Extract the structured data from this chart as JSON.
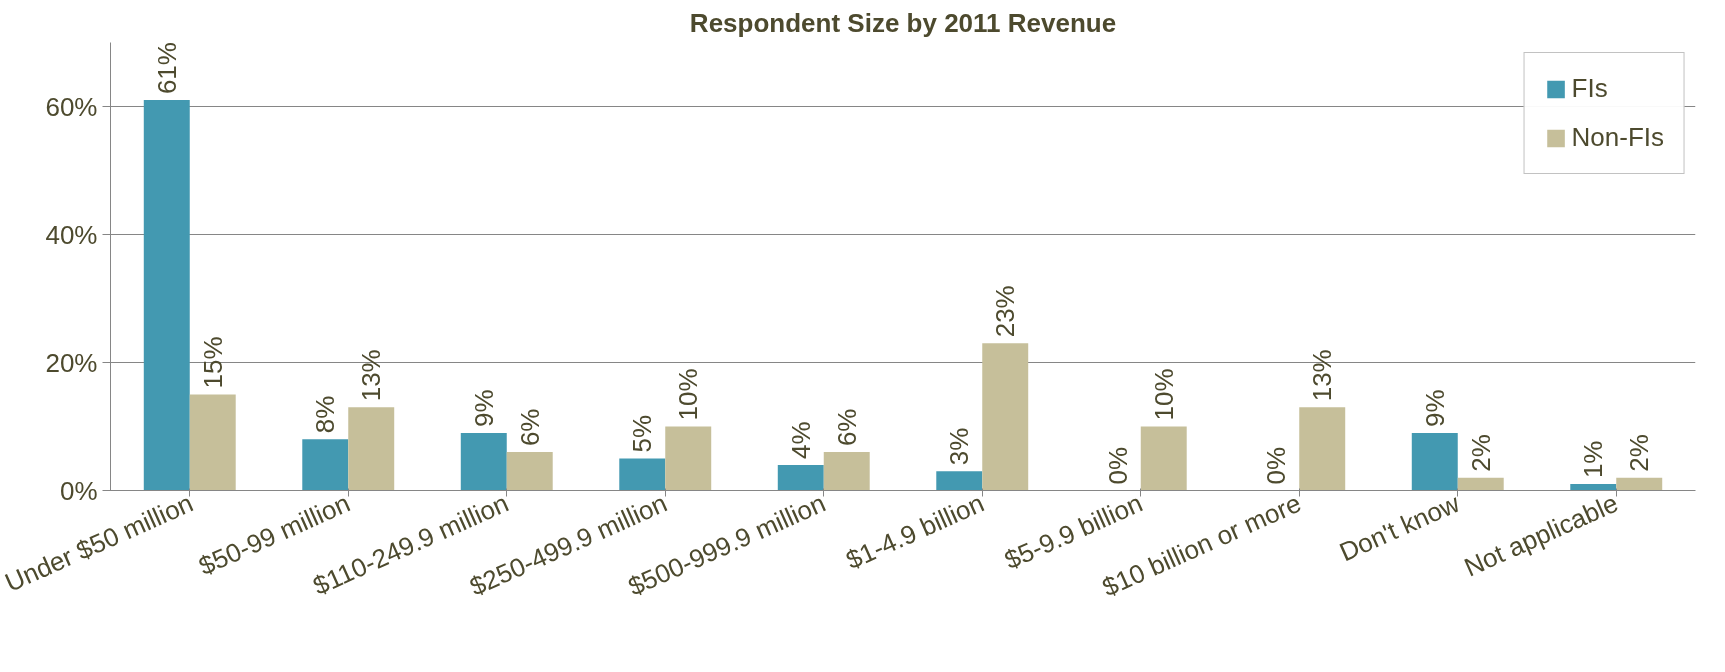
{
  "chart_data": {
    "type": "bar",
    "title": "Respondent Size by 2011 Revenue",
    "categories": [
      "Under $50 million",
      "$50-99 million",
      "$110-249.9 million",
      "$250-499.9 million",
      "$500-999.9 million",
      "$1-4.9 billion",
      "$5-9.9 billion",
      "$10 billion or more",
      "Don't know",
      "Not applicable"
    ],
    "series": [
      {
        "name": "FIs",
        "color": "#4399b1",
        "values": [
          61,
          8,
          9,
          5,
          4,
          3,
          0,
          0,
          9,
          1
        ],
        "value_labels": [
          "61%",
          "8%",
          "9%",
          "5%",
          "4%",
          "3%",
          "0%",
          "0%",
          "9%",
          "1%"
        ]
      },
      {
        "name": "Non-FIs",
        "color": "#c6bf9a",
        "values": [
          15,
          13,
          6,
          10,
          6,
          23,
          10,
          13,
          2,
          2
        ],
        "value_labels": [
          "15%",
          "13%",
          "6%",
          "10%",
          "6%",
          "23%",
          "10%",
          "13%",
          "2%",
          "2%"
        ]
      }
    ],
    "ylim": [
      0,
      70
    ],
    "yticks": [
      {
        "value": 0,
        "label": "0%"
      },
      {
        "value": 20,
        "label": "20%"
      },
      {
        "value": 40,
        "label": "40%"
      },
      {
        "value": 60,
        "label": "60%"
      }
    ],
    "grid": "y",
    "legend": "top right"
  }
}
